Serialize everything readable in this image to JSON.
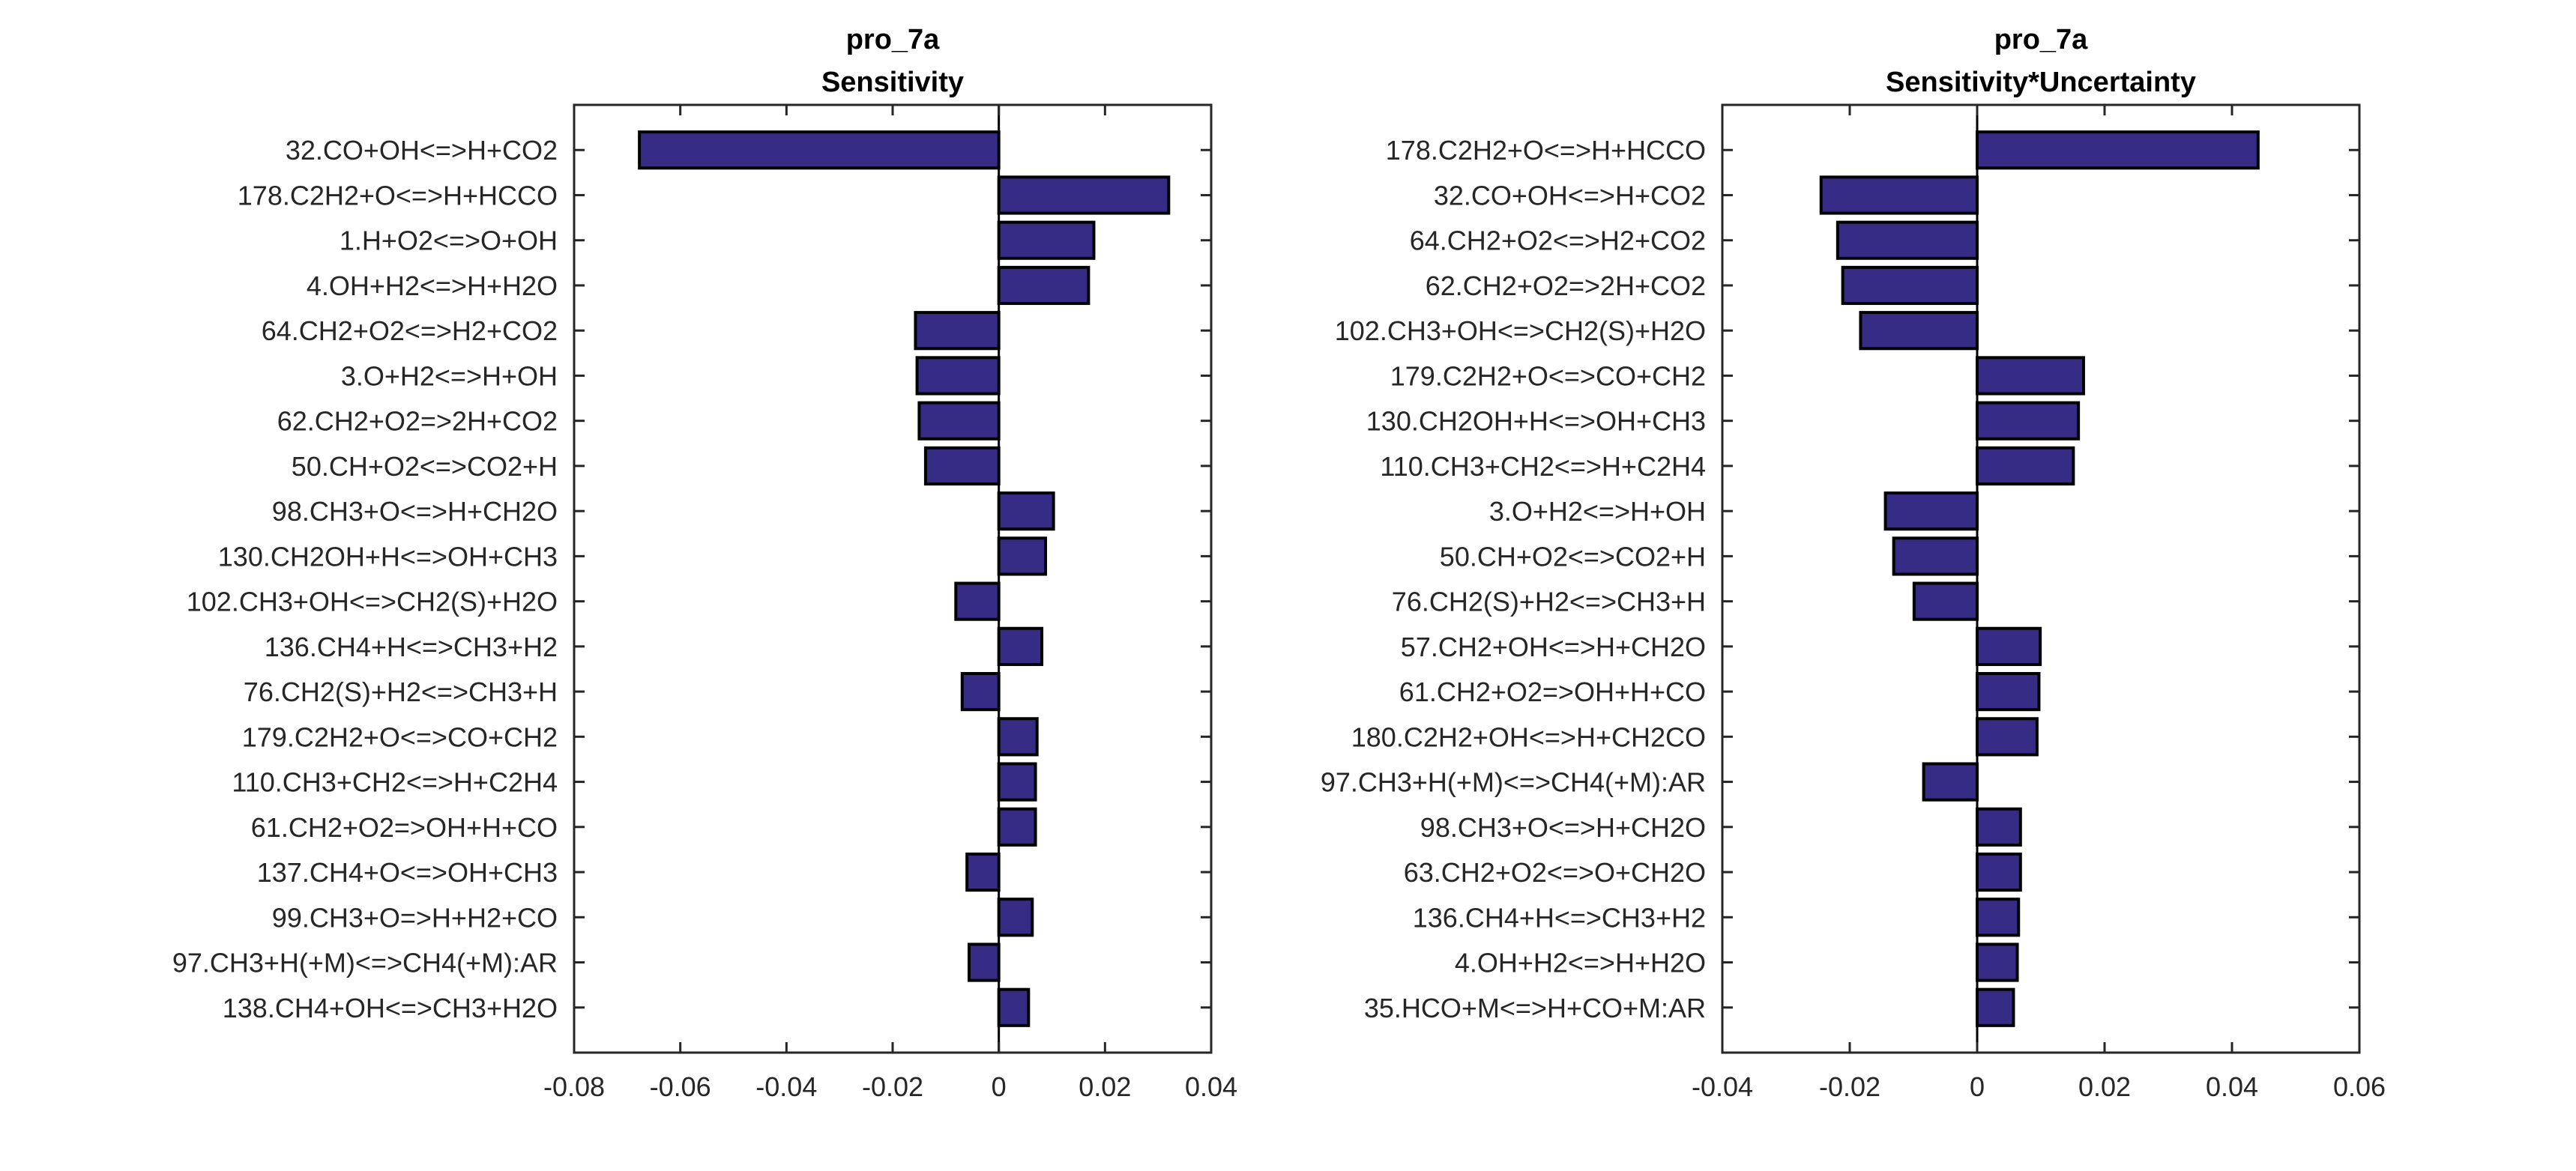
{
  "chart_data": [
    {
      "type": "bar",
      "orientation": "horizontal",
      "title": "pro_7a",
      "subtitle": "Sensitivity",
      "xlim": [
        -0.08,
        0.04
      ],
      "xticks": [
        "-0.08",
        "-0.06",
        "-0.04",
        "-0.02",
        "0",
        "0.02",
        "0.04"
      ],
      "xtick_values": [
        -0.08,
        -0.06,
        -0.04,
        -0.02,
        0,
        0.02,
        0.04
      ],
      "bar_color": "#362c85",
      "categories": [
        "32.CO+OH<=>H+CO2",
        "178.C2H2+O<=>H+HCCO",
        "1.H+O2<=>O+OH",
        "4.OH+H2<=>H+H2O",
        "64.CH2+O2<=>H2+CO2",
        "3.O+H2<=>H+OH",
        "62.CH2+O2=>2H+CO2",
        "50.CH+O2<=>CO2+H",
        "98.CH3+O<=>H+CH2O",
        "130.CH2OH+H<=>OH+CH3",
        "102.CH3+OH<=>CH2(S)+H2O",
        "136.CH4+H<=>CH3+H2",
        "76.CH2(S)+H2<=>CH3+H",
        "179.C2H2+O<=>CO+CH2",
        "110.CH3+CH2<=>H+C2H4",
        "61.CH2+O2=>OH+H+CO",
        "137.CH4+O<=>OH+CH3",
        "99.CH3+O=>H+H2+CO",
        "97.CH3+H(+M)<=>CH4(+M):AR",
        "138.CH4+OH<=>CH3+H2O"
      ],
      "values": [
        -0.0677,
        0.032,
        0.0179,
        0.0169,
        -0.0157,
        -0.0154,
        -0.015,
        -0.0138,
        0.0103,
        0.0088,
        -0.0081,
        0.0081,
        -0.0069,
        0.0072,
        0.0069,
        0.0069,
        -0.006,
        0.0063,
        -0.0056,
        0.0056
      ]
    },
    {
      "type": "bar",
      "orientation": "horizontal",
      "title": "pro_7a",
      "subtitle": "Sensitivity*Uncertainty",
      "xlim": [
        -0.04,
        0.06
      ],
      "xticks": [
        "-0.04",
        "-0.02",
        "0",
        "0.02",
        "0.04",
        "0.06"
      ],
      "xtick_values": [
        -0.04,
        -0.02,
        0,
        0.02,
        0.04,
        0.06
      ],
      "bar_color": "#362c85",
      "categories": [
        "178.C2H2+O<=>H+HCCO",
        "32.CO+OH<=>H+CO2",
        "64.CH2+O2<=>H2+CO2",
        "62.CH2+O2=>2H+CO2",
        "102.CH3+OH<=>CH2(S)+H2O",
        "179.C2H2+O<=>CO+CH2",
        "130.CH2OH+H<=>OH+CH3",
        "110.CH3+CH2<=>H+C2H4",
        "3.O+H2<=>H+OH",
        "50.CH+O2<=>CO2+H",
        "76.CH2(S)+H2<=>CH3+H",
        "57.CH2+OH<=>H+CH2O",
        "61.CH2+O2=>OH+H+CO",
        "180.C2H2+OH<=>H+CH2CO",
        "97.CH3+H(+M)<=>CH4(+M):AR",
        "98.CH3+O<=>H+CH2O",
        "63.CH2+O2<=>O+CH2O",
        "136.CH4+H<=>CH3+H2",
        "4.OH+H2<=>H+H2O",
        "35.HCO+M<=>H+CO+M:AR"
      ],
      "values": [
        0.0441,
        -0.0245,
        -0.0219,
        -0.0211,
        -0.0183,
        0.0167,
        0.0159,
        0.0151,
        -0.0144,
        -0.0131,
        -0.0099,
        0.0099,
        0.0097,
        0.0094,
        -0.0084,
        0.0068,
        0.0068,
        0.0065,
        0.0063,
        0.0057
      ]
    }
  ]
}
